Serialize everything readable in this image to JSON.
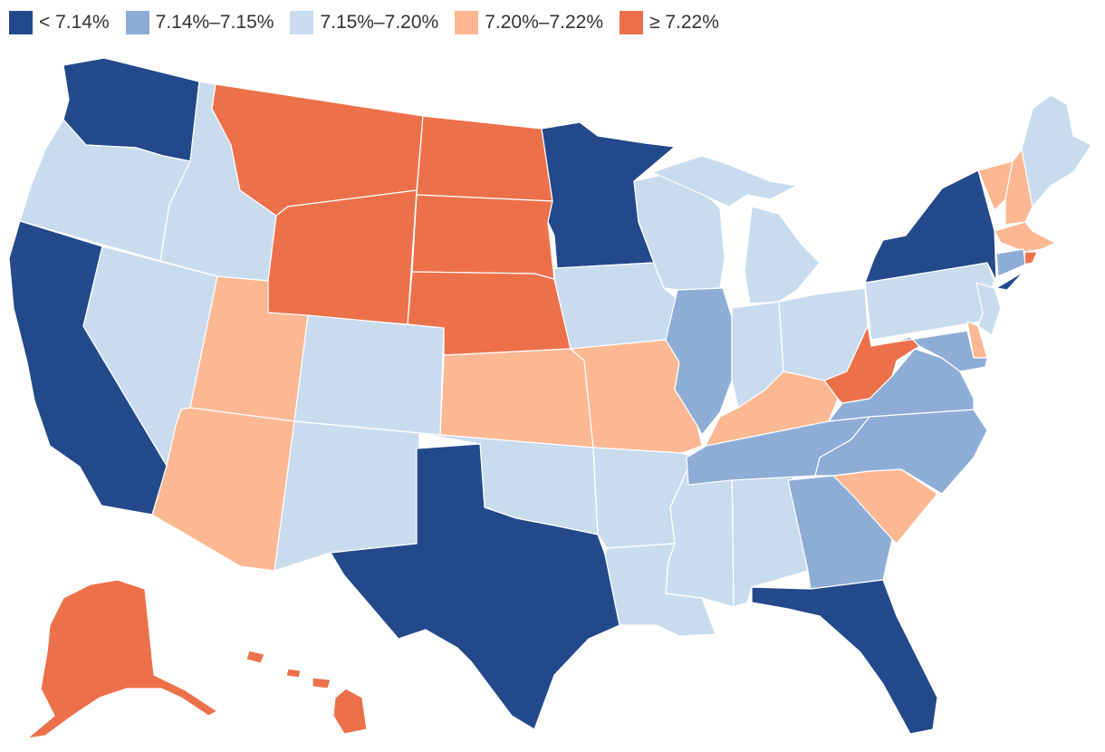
{
  "legend": {
    "bins": [
      {
        "label": "< 7.14%",
        "color": "#24498b"
      },
      {
        "label": "7.14%–7.15%",
        "color": "#8eadd6"
      },
      {
        "label": "7.15%–7.20%",
        "color": "#c9dcee"
      },
      {
        "label": "7.20%–7.22%",
        "color": "#fbb893"
      },
      {
        "label": "≥ 7.22%",
        "color": "#ec714b"
      }
    ]
  },
  "states": {
    "WA": 0,
    "OR": 2,
    "CA": 0,
    "NV": 2,
    "ID": 2,
    "MT": 4,
    "WY": 4,
    "UT": 3,
    "AZ": 3,
    "CO": 2,
    "NM": 2,
    "ND": 4,
    "SD": 4,
    "NE": 4,
    "KS": 3,
    "OK": 2,
    "TX": 0,
    "MN": 0,
    "IA": 2,
    "MO": 3,
    "AR": 2,
    "LA": 2,
    "WI": 2,
    "IL": 1,
    "MS": 2,
    "AL": 2,
    "MI": 2,
    "IN": 2,
    "OH": 2,
    "KY": 3,
    "TN": 1,
    "GA": 1,
    "FL": 0,
    "SC": 3,
    "NC": 1,
    "VA": 1,
    "WV": 4,
    "PA": 2,
    "NY": 0,
    "VT": 3,
    "NH": 3,
    "ME": 2,
    "MA": 3,
    "RI": 4,
    "CT": 1,
    "NJ": 2,
    "DE": 3,
    "MD": 1,
    "AK": 4,
    "HI": 4
  }
}
